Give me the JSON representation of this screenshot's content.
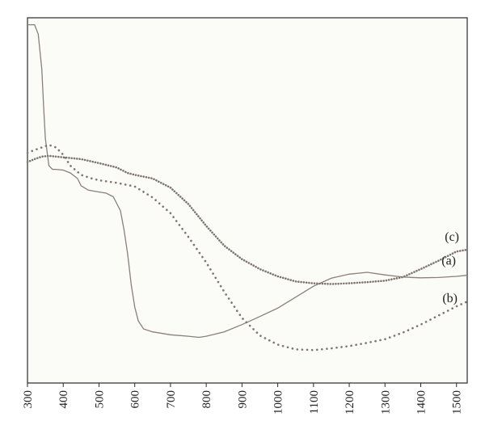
{
  "chart_data": {
    "type": "line",
    "title": "",
    "xlabel": "",
    "ylabel": "",
    "xlim": [
      300,
      1530
    ],
    "ylim": [
      0,
      1
    ],
    "x_ticks": [
      "300",
      "400",
      "500",
      "600",
      "700",
      "800",
      "900",
      "1000",
      "1100",
      "1200",
      "1300",
      "1400",
      "1500"
    ],
    "y_ticks": [],
    "grid": false,
    "legend": "none",
    "series": [
      {
        "name": "(a)",
        "style": "solid",
        "color": "#8a8078",
        "points": [
          [
            300,
            0.981
          ],
          [
            320,
            0.981
          ],
          [
            330,
            0.955
          ],
          [
            340,
            0.86
          ],
          [
            345,
            0.76
          ],
          [
            350,
            0.67
          ],
          [
            360,
            0.595
          ],
          [
            370,
            0.585
          ],
          [
            380,
            0.585
          ],
          [
            400,
            0.583
          ],
          [
            420,
            0.575
          ],
          [
            440,
            0.56
          ],
          [
            450,
            0.54
          ],
          [
            470,
            0.528
          ],
          [
            500,
            0.523
          ],
          [
            520,
            0.52
          ],
          [
            540,
            0.51
          ],
          [
            560,
            0.472
          ],
          [
            570,
            0.42
          ],
          [
            580,
            0.355
          ],
          [
            590,
            0.27
          ],
          [
            600,
            0.208
          ],
          [
            610,
            0.17
          ],
          [
            625,
            0.148
          ],
          [
            650,
            0.14
          ],
          [
            700,
            0.132
          ],
          [
            750,
            0.128
          ],
          [
            780,
            0.125
          ],
          [
            800,
            0.128
          ],
          [
            850,
            0.14
          ],
          [
            900,
            0.16
          ],
          [
            950,
            0.182
          ],
          [
            1000,
            0.205
          ],
          [
            1050,
            0.235
          ],
          [
            1100,
            0.265
          ],
          [
            1150,
            0.287
          ],
          [
            1200,
            0.298
          ],
          [
            1250,
            0.303
          ],
          [
            1300,
            0.296
          ],
          [
            1350,
            0.29
          ],
          [
            1400,
            0.288
          ],
          [
            1450,
            0.289
          ],
          [
            1500,
            0.292
          ],
          [
            1530,
            0.295
          ]
        ]
      },
      {
        "name": "(b)",
        "style": "dotted",
        "color": "#7e766e",
        "points": [
          [
            300,
            0.63
          ],
          [
            320,
            0.638
          ],
          [
            340,
            0.645
          ],
          [
            360,
            0.652
          ],
          [
            380,
            0.645
          ],
          [
            400,
            0.625
          ],
          [
            420,
            0.595
          ],
          [
            450,
            0.57
          ],
          [
            480,
            0.56
          ],
          [
            500,
            0.555
          ],
          [
            550,
            0.548
          ],
          [
            600,
            0.538
          ],
          [
            650,
            0.508
          ],
          [
            700,
            0.465
          ],
          [
            750,
            0.4
          ],
          [
            800,
            0.33
          ],
          [
            850,
            0.25
          ],
          [
            900,
            0.178
          ],
          [
            950,
            0.13
          ],
          [
            1000,
            0.105
          ],
          [
            1050,
            0.092
          ],
          [
            1100,
            0.09
          ],
          [
            1150,
            0.095
          ],
          [
            1200,
            0.101
          ],
          [
            1250,
            0.11
          ],
          [
            1300,
            0.12
          ],
          [
            1350,
            0.138
          ],
          [
            1400,
            0.16
          ],
          [
            1450,
            0.185
          ],
          [
            1500,
            0.21
          ],
          [
            1530,
            0.223
          ]
        ]
      },
      {
        "name": "(c)",
        "style": "dotted",
        "color": "#8a8078",
        "points": [
          [
            300,
            0.605
          ],
          [
            320,
            0.613
          ],
          [
            340,
            0.62
          ],
          [
            360,
            0.622
          ],
          [
            400,
            0.618
          ],
          [
            450,
            0.613
          ],
          [
            500,
            0.602
          ],
          [
            550,
            0.59
          ],
          [
            580,
            0.575
          ],
          [
            600,
            0.57
          ],
          [
            650,
            0.56
          ],
          [
            700,
            0.535
          ],
          [
            750,
            0.49
          ],
          [
            800,
            0.43
          ],
          [
            850,
            0.376
          ],
          [
            900,
            0.339
          ],
          [
            950,
            0.312
          ],
          [
            1000,
            0.292
          ],
          [
            1050,
            0.278
          ],
          [
            1100,
            0.273
          ],
          [
            1150,
            0.271
          ],
          [
            1200,
            0.273
          ],
          [
            1250,
            0.276
          ],
          [
            1300,
            0.28
          ],
          [
            1350,
            0.29
          ],
          [
            1400,
            0.312
          ],
          [
            1450,
            0.335
          ],
          [
            1500,
            0.36
          ],
          [
            1530,
            0.365
          ]
        ]
      }
    ]
  }
}
